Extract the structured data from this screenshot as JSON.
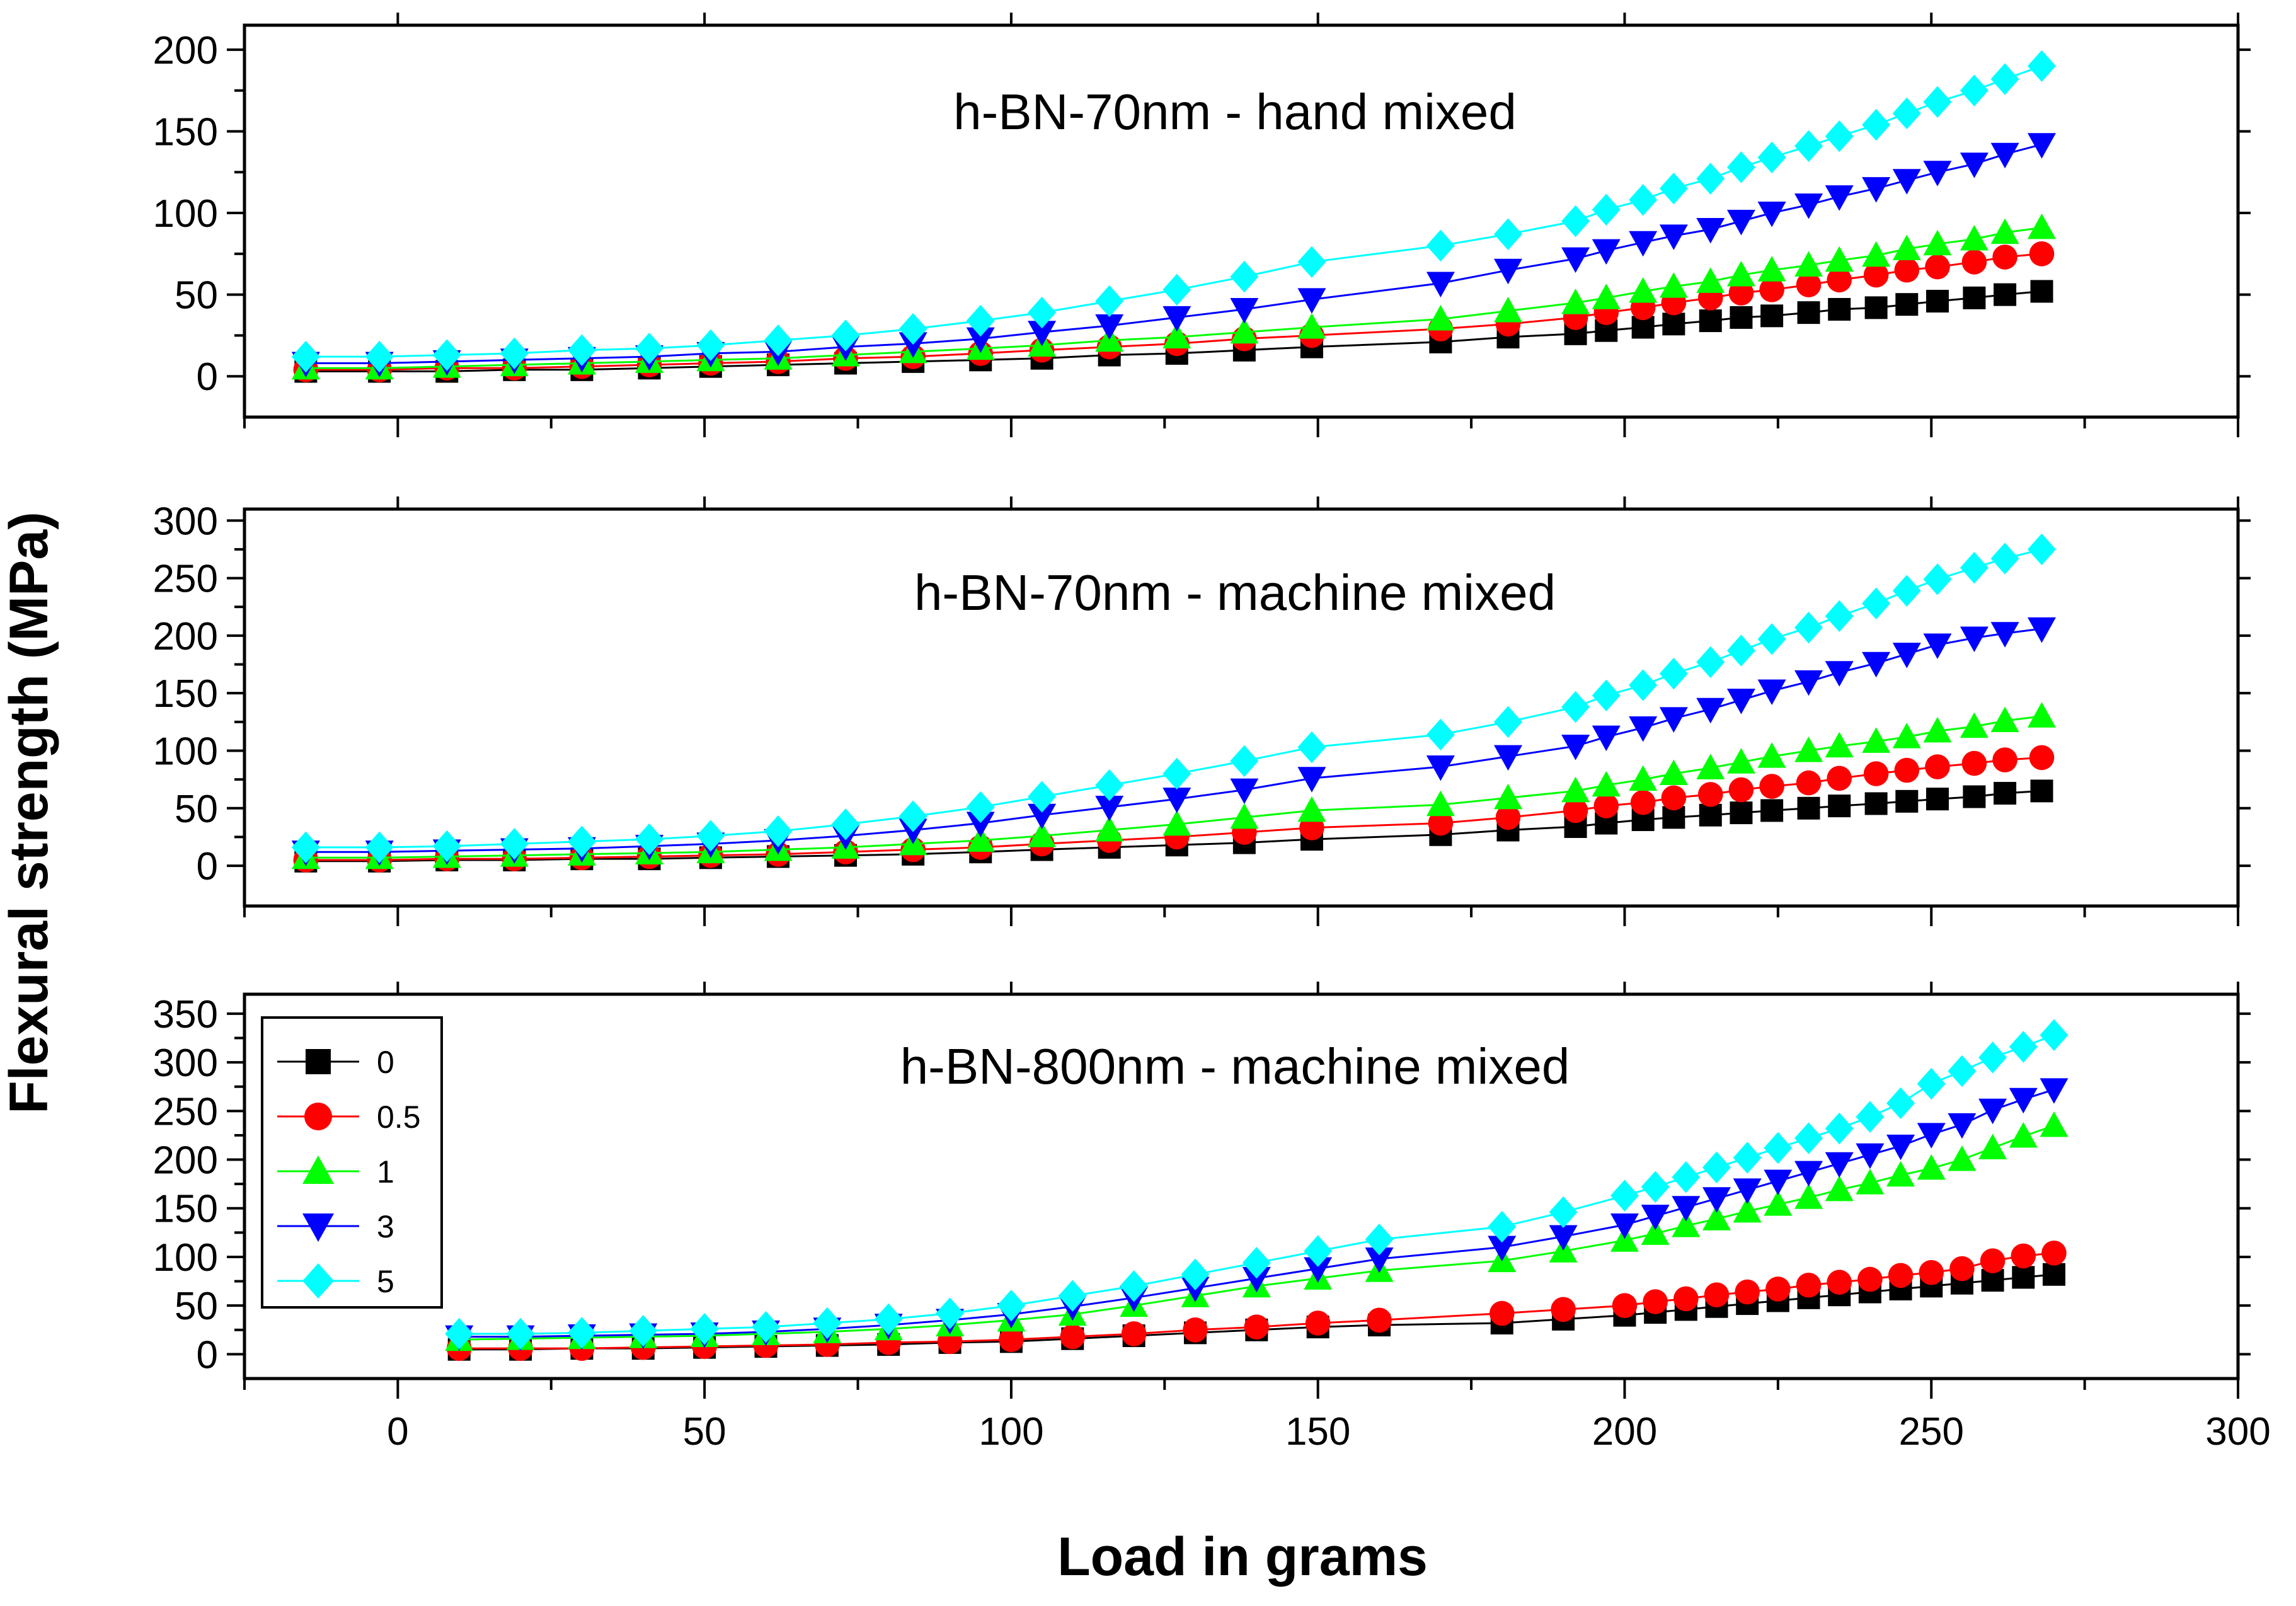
{
  "figure": {
    "ylabel": "Flexural strength (MPa)",
    "xlabel": "Load in grams"
  },
  "legend": {
    "placement": "top-left of bottom panel",
    "entries": [
      {
        "label": "0",
        "color": "#000000",
        "marker": "square"
      },
      {
        "label": "0.5",
        "color": "#ff0000",
        "marker": "circle"
      },
      {
        "label": "1",
        "color": "#00ff00",
        "marker": "triangle-up"
      },
      {
        "label": "3",
        "color": "#0000ff",
        "marker": "triangle-down"
      },
      {
        "label": "5",
        "color": "#00ffff",
        "marker": "diamond"
      }
    ]
  },
  "chart_data": [
    {
      "type": "line",
      "title": "h-BN-70nm  - hand mixed",
      "xlabel": "Load in grams",
      "ylabel": "Flexural strength (MPa)",
      "xlim": [
        -25,
        300
      ],
      "ylim": [
        -25,
        215
      ],
      "yticks": [
        0,
        50,
        100,
        150,
        200
      ],
      "ytick_labels": [
        "0",
        "50",
        "100",
        "150",
        "200"
      ],
      "x": [
        -15,
        -3,
        8,
        19,
        30,
        41,
        51,
        62,
        73,
        84,
        95,
        105,
        116,
        127,
        138,
        149,
        170,
        181,
        192,
        197,
        203,
        208,
        214,
        219,
        224,
        230,
        235,
        241,
        246,
        251,
        257,
        262,
        268
      ],
      "series": [
        {
          "name": "0",
          "values": [
            3,
            3,
            3,
            4,
            4,
            5,
            6,
            7,
            8,
            9,
            10,
            11,
            13,
            14,
            16,
            18,
            21,
            24,
            26,
            28,
            30,
            32,
            34,
            36,
            37,
            39,
            41,
            42,
            44,
            46,
            48,
            50,
            52
          ]
        },
        {
          "name": "0.5",
          "values": [
            4,
            4,
            5,
            5,
            6,
            7,
            8,
            9,
            11,
            12,
            14,
            16,
            18,
            20,
            23,
            25,
            29,
            32,
            36,
            39,
            42,
            45,
            48,
            51,
            53,
            56,
            59,
            62,
            65,
            67,
            70,
            73,
            75
          ]
        },
        {
          "name": "1",
          "values": [
            5,
            5,
            6,
            7,
            8,
            9,
            10,
            11,
            13,
            15,
            17,
            19,
            22,
            24,
            27,
            30,
            35,
            40,
            45,
            48,
            52,
            55,
            58,
            62,
            65,
            68,
            71,
            74,
            78,
            81,
            84,
            88,
            91
          ]
        },
        {
          "name": "3",
          "values": [
            8,
            8,
            9,
            10,
            11,
            12,
            14,
            15,
            18,
            20,
            23,
            27,
            31,
            36,
            41,
            47,
            57,
            65,
            72,
            77,
            82,
            86,
            90,
            95,
            100,
            105,
            110,
            115,
            120,
            125,
            130,
            136,
            142
          ]
        },
        {
          "name": "5",
          "values": [
            12,
            12,
            13,
            14,
            16,
            17,
            19,
            22,
            25,
            29,
            34,
            39,
            46,
            53,
            61,
            70,
            80,
            87,
            95,
            102,
            108,
            115,
            121,
            128,
            134,
            141,
            147,
            154,
            161,
            168,
            175,
            182,
            190
          ]
        }
      ]
    },
    {
      "type": "line",
      "title": "h-BN-70nm  - machine mixed",
      "xlabel": "Load in grams",
      "ylabel": "Flexural strength (MPa)",
      "xlim": [
        -25,
        300
      ],
      "ylim": [
        -35,
        310
      ],
      "yticks": [
        0,
        50,
        100,
        150,
        200,
        250,
        300
      ],
      "ytick_labels": [
        "0",
        "50",
        "100",
        "150",
        "200",
        "250",
        "300"
      ],
      "x": [
        -15,
        -3,
        8,
        19,
        30,
        41,
        51,
        62,
        73,
        84,
        95,
        105,
        116,
        127,
        138,
        149,
        170,
        181,
        192,
        197,
        203,
        208,
        214,
        219,
        224,
        230,
        235,
        241,
        246,
        251,
        257,
        262,
        268
      ],
      "series": [
        {
          "name": "0",
          "values": [
            4,
            4,
            5,
            5,
            6,
            6,
            7,
            8,
            9,
            10,
            12,
            14,
            16,
            18,
            20,
            23,
            27,
            31,
            34,
            37,
            40,
            42,
            44,
            46,
            48,
            50,
            52,
            54,
            56,
            58,
            60,
            63,
            65
          ]
        },
        {
          "name": "0.5",
          "values": [
            5,
            5,
            6,
            6,
            7,
            8,
            9,
            10,
            12,
            14,
            16,
            19,
            22,
            25,
            29,
            33,
            37,
            42,
            48,
            52,
            55,
            59,
            62,
            66,
            69,
            72,
            76,
            80,
            83,
            86,
            89,
            92,
            94
          ]
        },
        {
          "name": "1",
          "values": [
            7,
            7,
            8,
            9,
            10,
            11,
            12,
            14,
            16,
            19,
            22,
            26,
            31,
            36,
            42,
            48,
            53,
            59,
            65,
            70,
            75,
            80,
            85,
            90,
            95,
            100,
            104,
            108,
            112,
            117,
            121,
            126,
            130
          ]
        },
        {
          "name": "3",
          "values": [
            12,
            12,
            13,
            14,
            15,
            17,
            19,
            22,
            26,
            31,
            37,
            44,
            51,
            58,
            66,
            76,
            86,
            95,
            104,
            112,
            120,
            128,
            136,
            144,
            152,
            160,
            168,
            176,
            184,
            192,
            198,
            202,
            206
          ]
        },
        {
          "name": "5",
          "values": [
            16,
            16,
            17,
            19,
            21,
            23,
            26,
            30,
            36,
            43,
            51,
            60,
            70,
            80,
            91,
            103,
            114,
            125,
            138,
            148,
            157,
            167,
            177,
            187,
            197,
            207,
            217,
            228,
            239,
            249,
            259,
            267,
            275
          ]
        }
      ]
    },
    {
      "type": "line",
      "title": "h-BN-800nm  - machine mixed",
      "xlabel": "Load in grams",
      "ylabel": "Flexural strength (MPa)",
      "xlim": [
        -25,
        300
      ],
      "ylim": [
        -25,
        370
      ],
      "yticks": [
        0,
        50,
        100,
        150,
        200,
        250,
        300,
        350
      ],
      "ytick_labels": [
        "0",
        "50",
        "100",
        "150",
        "200",
        "250",
        "300",
        "350"
      ],
      "xticks": [
        0,
        50,
        100,
        150,
        200,
        250,
        300
      ],
      "xtick_labels": [
        "0",
        "50",
        "100",
        "150",
        "200",
        "250",
        "300"
      ],
      "x": [
        10,
        20,
        30,
        40,
        50,
        60,
        70,
        80,
        90,
        100,
        110,
        120,
        130,
        140,
        150,
        160,
        180,
        190,
        200,
        205,
        210,
        215,
        220,
        225,
        230,
        235,
        240,
        245,
        250,
        255,
        260,
        265,
        270
      ],
      "series": [
        {
          "name": "0",
          "values": [
            5,
            5,
            6,
            6,
            7,
            8,
            9,
            10,
            12,
            13,
            16,
            19,
            22,
            25,
            28,
            30,
            32,
            36,
            40,
            43,
            46,
            49,
            52,
            55,
            58,
            61,
            64,
            67,
            70,
            73,
            76,
            79,
            82
          ]
        },
        {
          "name": "0.5",
          "values": [
            6,
            6,
            6,
            7,
            8,
            9,
            10,
            12,
            13,
            15,
            18,
            21,
            25,
            28,
            32,
            35,
            42,
            46,
            50,
            54,
            57,
            61,
            64,
            67,
            71,
            74,
            77,
            81,
            84,
            88,
            96,
            101,
            104
          ]
        },
        {
          "name": "1",
          "values": [
            15,
            16,
            17,
            18,
            19,
            21,
            23,
            26,
            30,
            35,
            41,
            50,
            60,
            70,
            78,
            86,
            96,
            106,
            117,
            124,
            132,
            139,
            147,
            154,
            161,
            169,
            176,
            184,
            191,
            200,
            212,
            224,
            235
          ]
        },
        {
          "name": "3",
          "values": [
            18,
            18,
            19,
            20,
            21,
            23,
            26,
            30,
            35,
            41,
            49,
            58,
            68,
            78,
            88,
            98,
            110,
            121,
            133,
            142,
            151,
            160,
            169,
            178,
            187,
            196,
            205,
            214,
            226,
            236,
            251,
            262,
            272
          ]
        },
        {
          "name": "5",
          "values": [
            21,
            21,
            22,
            24,
            26,
            28,
            32,
            36,
            42,
            50,
            60,
            70,
            82,
            94,
            106,
            118,
            131,
            146,
            163,
            172,
            182,
            192,
            202,
            212,
            222,
            232,
            244,
            258,
            278,
            291,
            305,
            316,
            328
          ]
        }
      ]
    }
  ]
}
